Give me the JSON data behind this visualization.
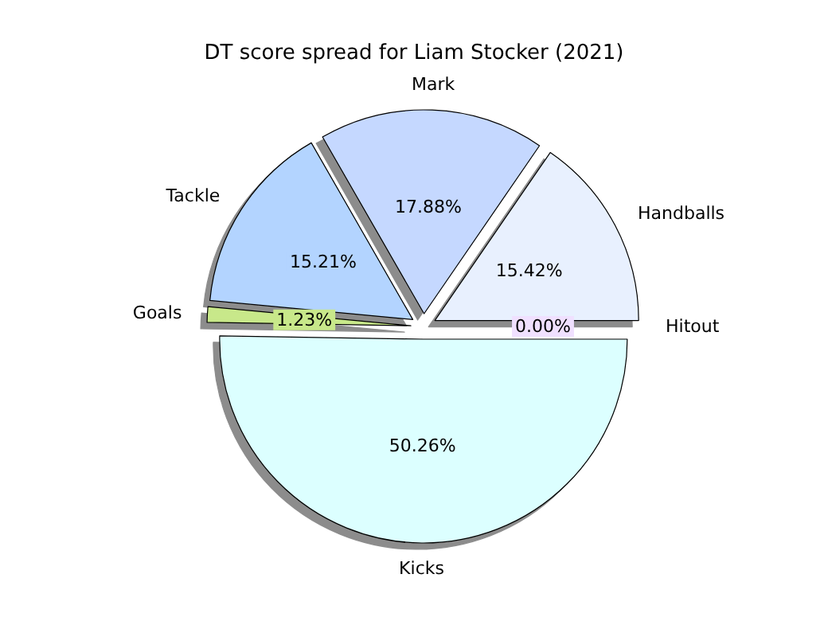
{
  "chart_data": {
    "type": "pie",
    "title": "DT score spread for Liam Stocker (2021)",
    "categories": [
      "Hitout",
      "Handballs",
      "Mark",
      "Tackle",
      "Goals",
      "Kicks"
    ],
    "values": [
      0.0,
      15.42,
      17.88,
      15.21,
      1.23,
      50.26
    ],
    "colors": [
      "#f0e0ff",
      "#e8f0fe",
      "#c5d8ff",
      "#b3d4ff",
      "#c8e88a",
      "#dcffff"
    ],
    "value_labels": [
      "0.00%",
      "15.42%",
      "17.88%",
      "15.21%",
      "1.23%",
      "50.26%"
    ],
    "legend": false
  }
}
